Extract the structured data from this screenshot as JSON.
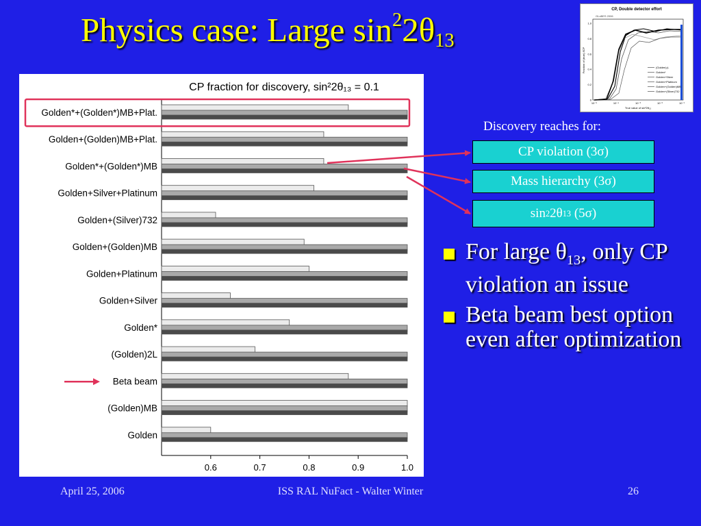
{
  "slide": {
    "title_main": "Physics case: Large sin",
    "title_sup": "2",
    "title_mid": "2θ",
    "title_sub": "13",
    "discovery_heading": "Discovery reaches for:",
    "boxes": {
      "cp": "CP violation (3σ)",
      "mh": "Mass hierarchy (3σ)",
      "th_pre": "sin",
      "th_sup": "2",
      "th_mid": "2θ",
      "th_sub": "13",
      "th_post": " (5σ)"
    },
    "bullets": {
      "b1_pre": "For large θ",
      "b1_sub": "13",
      "b1_post": ", only CP violation an issue",
      "b2": "Beta beam best option even after optimization"
    },
    "footer": {
      "date": "April 25, 2006",
      "center": "ISS RAL NuFact - Walter Winter",
      "page": "26"
    }
  },
  "inset": {
    "title": "CP, Double detector effort",
    "badge": "GLoBES 2006",
    "ylabel": "Fraction of (true) δCP",
    "xlabel": "True value of sin²2θ₁₃",
    "xticks": [
      "10⁻⁵",
      "10⁻⁴",
      "10⁻³",
      "10⁻²",
      "10⁻¹"
    ],
    "yticks": [
      "1.0",
      "0.8",
      "0.6",
      "0.4",
      "0.2",
      "0"
    ],
    "legend": [
      "(Golden)₂L",
      "Golden*",
      "Golden+Silver",
      "Golden+Platinum",
      "Golden+(Golden)MB",
      "Golden+(Silver)732"
    ],
    "colors": {
      "line_dark": "#000000",
      "line_mid": "#555555",
      "line_light": "#999999",
      "highlight": "#1b4fd8"
    }
  },
  "chart_data": {
    "type": "bar",
    "title": "CP fraction for discovery, sin²2θ₁₃ = 0.1",
    "orientation": "horizontal",
    "xlim": [
      0.5,
      1.0
    ],
    "xticks": [
      "0.6",
      "0.7",
      "0.8",
      "0.9",
      "1.0"
    ],
    "categories": [
      {
        "label": "Golden*+(Golden*)MB+Plat.",
        "highlight": true,
        "arrow": false
      },
      {
        "label": "Golden+(Golden)MB+Plat.",
        "highlight": false,
        "arrow": false
      },
      {
        "label": "Golden*+(Golden*)MB",
        "highlight": false,
        "arrow": false
      },
      {
        "label": "Golden+Silver+Platinum",
        "highlight": false,
        "arrow": false
      },
      {
        "label": "Golden+(Silver)732",
        "highlight": false,
        "arrow": false
      },
      {
        "label": "Golden+(Golden)MB",
        "highlight": false,
        "arrow": false
      },
      {
        "label": "Golden+Platinum",
        "highlight": false,
        "arrow": false
      },
      {
        "label": "Golden+Silver",
        "highlight": false,
        "arrow": false
      },
      {
        "label": "Golden*",
        "highlight": false,
        "arrow": false
      },
      {
        "label": "(Golden)2L",
        "highlight": false,
        "arrow": false
      },
      {
        "label": "Beta beam",
        "highlight": false,
        "arrow": true
      },
      {
        "label": "(Golden)MB",
        "highlight": false,
        "arrow": false
      },
      {
        "label": "Golden",
        "highlight": false,
        "arrow": false
      }
    ],
    "series": [
      {
        "values": [
          0.88,
          0.83,
          0.83,
          0.81,
          0.61,
          0.79,
          0.8,
          0.64,
          0.76,
          0.69,
          0.88,
          1.0,
          0.6
        ]
      },
      {
        "values": [
          1.0,
          1.0,
          1.0,
          1.0,
          1.0,
          1.0,
          1.0,
          1.0,
          1.0,
          1.0,
          1.0,
          1.0,
          1.0
        ]
      },
      {
        "values": [
          1.0,
          1.0,
          1.0,
          1.0,
          1.0,
          1.0,
          1.0,
          1.0,
          1.0,
          1.0,
          1.0,
          1.0,
          1.0
        ]
      }
    ],
    "colors": [
      "#ebebeb",
      "#a9a9a9",
      "#4a4a4a"
    ],
    "highlight_color": "#e0325a",
    "arrow_color": "#e0325a"
  }
}
